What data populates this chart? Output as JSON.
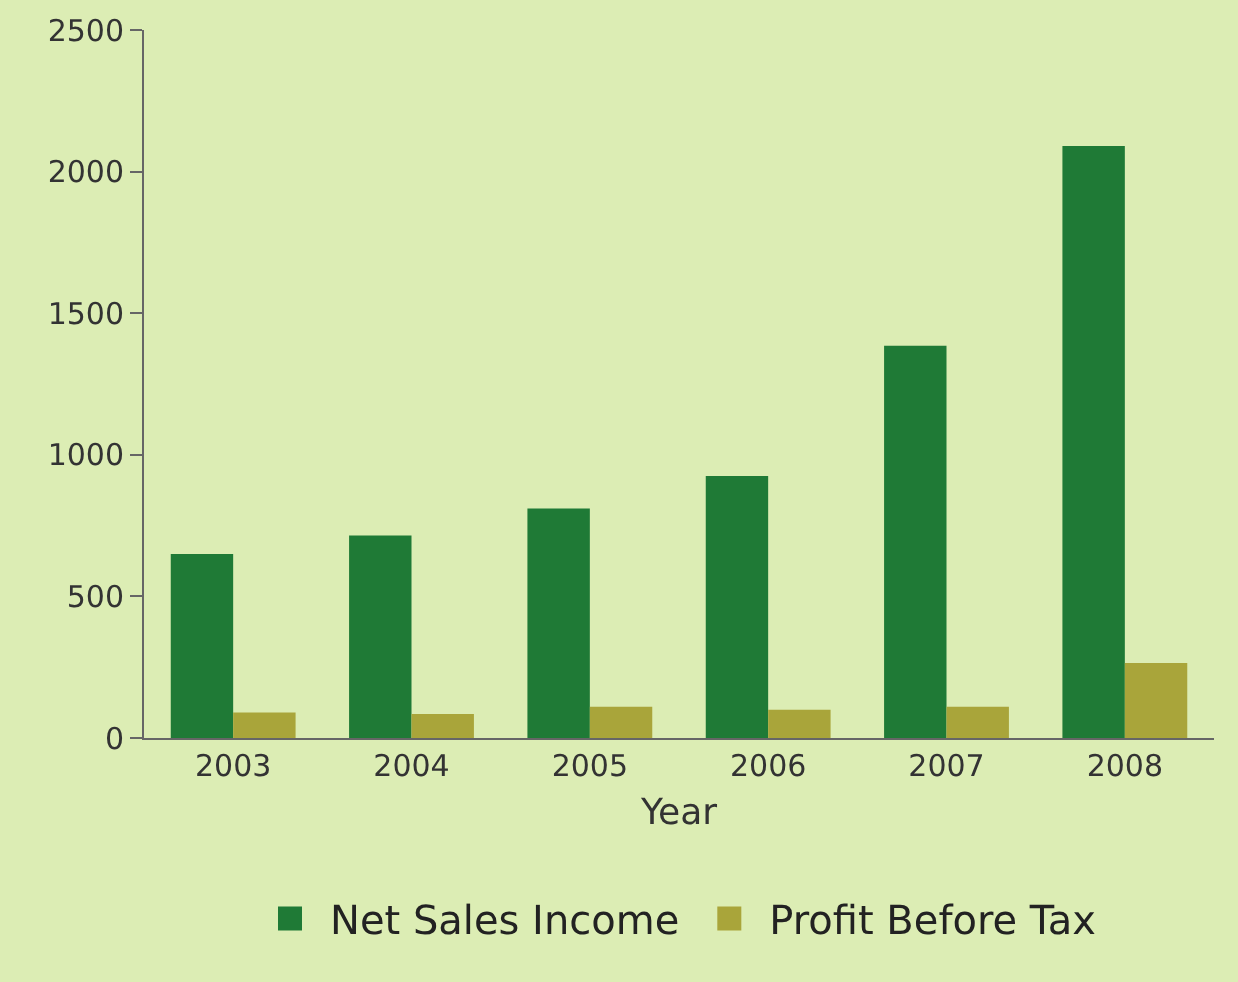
{
  "chart_data": {
    "type": "bar",
    "xlabel": "Year",
    "categories": [
      "2003",
      "2004",
      "2005",
      "2006",
      "2007",
      "2008"
    ],
    "series": [
      {
        "name": "Net Sales Income",
        "color": "#1f7a36",
        "values": [
          650,
          715,
          810,
          925,
          1385,
          2090
        ]
      },
      {
        "name": "Profit Before Tax",
        "color": "#a9a53a",
        "values": [
          90,
          85,
          110,
          100,
          110,
          265
        ]
      }
    ],
    "ylim": [
      0,
      2500
    ],
    "yticks": [
      0,
      500,
      1000,
      1500,
      2000,
      2500
    ],
    "grid": false,
    "legend": "bottom"
  }
}
